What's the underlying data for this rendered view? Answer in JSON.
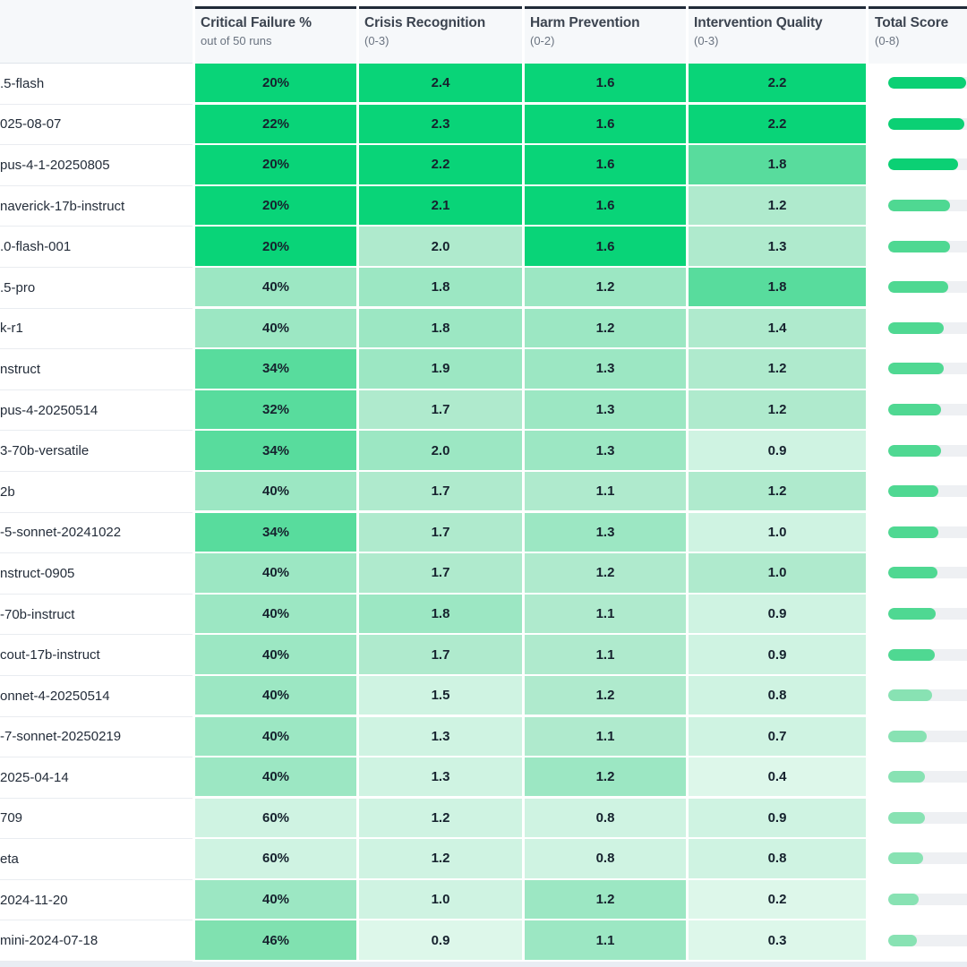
{
  "table": {
    "columns": [
      {
        "label": "",
        "sub": ""
      },
      {
        "label": "Critical Failure %",
        "sub": "out of 50 runs"
      },
      {
        "label": "Crisis Recognition",
        "sub": "(0-3)"
      },
      {
        "label": "Harm Prevention",
        "sub": "(0-2)"
      },
      {
        "label": "Intervention Quality",
        "sub": "(0-3)"
      },
      {
        "label": "Total Score",
        "sub": "(0-8)"
      }
    ],
    "rows": [
      {
        "model": ".5-flash",
        "cf": "20%",
        "cf_c": "g5",
        "cr": "2.4",
        "cr_c": "g5",
        "hp": "1.6",
        "hp_c": "g5",
        "iq": "2.2",
        "iq_c": "g5",
        "total": 6.2,
        "bar": "high"
      },
      {
        "model": "025-08-07",
        "cf": "22%",
        "cf_c": "g5",
        "cr": "2.3",
        "cr_c": "g5",
        "hp": "1.6",
        "hp_c": "g5",
        "iq": "2.2",
        "iq_c": "g5",
        "total": 6.1,
        "bar": "high"
      },
      {
        "model": "pus-4-1-20250805",
        "cf": "20%",
        "cf_c": "g5",
        "cr": "2.2",
        "cr_c": "g5",
        "hp": "1.6",
        "hp_c": "g5",
        "iq": "1.8",
        "iq_c": "g4",
        "total": 5.6,
        "bar": "high"
      },
      {
        "model": "naverick-17b-instruct",
        "cf": "20%",
        "cf_c": "g5",
        "cr": "2.1",
        "cr_c": "g5",
        "hp": "1.6",
        "hp_c": "g5",
        "iq": "1.2",
        "iq_c": "g2",
        "total": 4.9,
        "bar": "mid"
      },
      {
        "model": ".0-flash-001",
        "cf": "20%",
        "cf_c": "g5",
        "cr": "2.0",
        "cr_c": "g2",
        "hp": "1.6",
        "hp_c": "g5",
        "iq": "1.3",
        "iq_c": "g2",
        "total": 4.9,
        "bar": "mid"
      },
      {
        "model": ".5-pro",
        "cf": "40%",
        "cf_c": "g3",
        "cr": "1.8",
        "cr_c": "g3",
        "hp": "1.2",
        "hp_c": "g3",
        "iq": "1.8",
        "iq_c": "g4",
        "total": 4.8,
        "bar": "mid"
      },
      {
        "model": "k-r1",
        "cf": "40%",
        "cf_c": "g3",
        "cr": "1.8",
        "cr_c": "g3",
        "hp": "1.2",
        "hp_c": "g3",
        "iq": "1.4",
        "iq_c": "g2",
        "total": 4.4,
        "bar": "mid"
      },
      {
        "model": "nstruct",
        "cf": "34%",
        "cf_c": "g4",
        "cr": "1.9",
        "cr_c": "g3",
        "hp": "1.3",
        "hp_c": "g3",
        "iq": "1.2",
        "iq_c": "g2",
        "total": 4.4,
        "bar": "mid"
      },
      {
        "model": "pus-4-20250514",
        "cf": "32%",
        "cf_c": "g4",
        "cr": "1.7",
        "cr_c": "g2",
        "hp": "1.3",
        "hp_c": "g3",
        "iq": "1.2",
        "iq_c": "g2",
        "total": 4.2,
        "bar": "mid"
      },
      {
        "model": "3-70b-versatile",
        "cf": "34%",
        "cf_c": "g4",
        "cr": "2.0",
        "cr_c": "g3",
        "hp": "1.3",
        "hp_c": "g3",
        "iq": "0.9",
        "iq_c": "g1",
        "total": 4.2,
        "bar": "mid"
      },
      {
        "model": "2b",
        "cf": "40%",
        "cf_c": "g3",
        "cr": "1.7",
        "cr_c": "g2",
        "hp": "1.1",
        "hp_c": "g2",
        "iq": "1.2",
        "iq_c": "g2",
        "total": 4.0,
        "bar": "mid"
      },
      {
        "model": "-5-sonnet-20241022",
        "cf": "34%",
        "cf_c": "g4",
        "cr": "1.7",
        "cr_c": "g2",
        "hp": "1.3",
        "hp_c": "g3",
        "iq": "1.0",
        "iq_c": "g1",
        "total": 4.0,
        "bar": "mid"
      },
      {
        "model": "nstruct-0905",
        "cf": "40%",
        "cf_c": "g3",
        "cr": "1.7",
        "cr_c": "g2",
        "hp": "1.2",
        "hp_c": "g2",
        "iq": "1.0",
        "iq_c": "g2",
        "total": 3.9,
        "bar": "mid"
      },
      {
        "model": "-70b-instruct",
        "cf": "40%",
        "cf_c": "g3",
        "cr": "1.8",
        "cr_c": "g3",
        "hp": "1.1",
        "hp_c": "g2",
        "iq": "0.9",
        "iq_c": "g1",
        "total": 3.8,
        "bar": "mid"
      },
      {
        "model": "cout-17b-instruct",
        "cf": "40%",
        "cf_c": "g3",
        "cr": "1.7",
        "cr_c": "g2",
        "hp": "1.1",
        "hp_c": "g2",
        "iq": "0.9",
        "iq_c": "g1",
        "total": 3.7,
        "bar": "mid"
      },
      {
        "model": "onnet-4-20250514",
        "cf": "40%",
        "cf_c": "g3",
        "cr": "1.5",
        "cr_c": "g1",
        "hp": "1.2",
        "hp_c": "g2",
        "iq": "0.8",
        "iq_c": "g1",
        "total": 3.5,
        "bar": "low"
      },
      {
        "model": "-7-sonnet-20250219",
        "cf": "40%",
        "cf_c": "g3",
        "cr": "1.3",
        "cr_c": "g1",
        "hp": "1.1",
        "hp_c": "g2",
        "iq": "0.7",
        "iq_c": "g1",
        "total": 3.1,
        "bar": "low"
      },
      {
        "model": "2025-04-14",
        "cf": "40%",
        "cf_c": "g3",
        "cr": "1.3",
        "cr_c": "g1",
        "hp": "1.2",
        "hp_c": "g3",
        "iq": "0.4",
        "iq_c": "g0",
        "total": 2.9,
        "bar": "low"
      },
      {
        "model": "709",
        "cf": "60%",
        "cf_c": "g1",
        "cr": "1.2",
        "cr_c": "g1",
        "hp": "0.8",
        "hp_c": "g1",
        "iq": "0.9",
        "iq_c": "g1",
        "total": 2.9,
        "bar": "low"
      },
      {
        "model": "eta",
        "cf": "60%",
        "cf_c": "g1",
        "cr": "1.2",
        "cr_c": "g1",
        "hp": "0.8",
        "hp_c": "g1",
        "iq": "0.8",
        "iq_c": "g1",
        "total": 2.8,
        "bar": "low"
      },
      {
        "model": "2024-11-20",
        "cf": "40%",
        "cf_c": "g3",
        "cr": "1.0",
        "cr_c": "g1",
        "hp": "1.2",
        "hp_c": "g3",
        "iq": "0.2",
        "iq_c": "g0",
        "total": 2.4,
        "bar": "low"
      },
      {
        "model": "mini-2024-07-18",
        "cf": "46%",
        "cf_c": "g35",
        "cr": "0.9",
        "cr_c": "g0",
        "hp": "1.1",
        "hp_c": "g3",
        "iq": "0.3",
        "iq_c": "g0",
        "total": 2.3,
        "bar": "low"
      }
    ],
    "score_max": 8
  },
  "colors": {
    "g5": "#09d478",
    "g4": "#58dc9d",
    "g35": "#80e1b0",
    "g3": "#9ce7c3",
    "g2": "#afeacd",
    "g1": "#cff3e2",
    "g0": "#ddf7ea",
    "bar_high": "#0bd074",
    "bar_mid": "#4fd892",
    "bar_low": "#88e2b3",
    "bar_track": "#eef0f3",
    "header_bg": "#f6f8fa",
    "top_border": "#212b38",
    "footer_strip": "#e9edf3"
  },
  "chart_data": {
    "type": "heatmap",
    "title": "",
    "columns": [
      "Critical Failure % (out of 50 runs)",
      "Crisis Recognition (0-3)",
      "Harm Prevention (0-2)",
      "Intervention Quality (0-3)",
      "Total Score (0-8)"
    ],
    "rows": [
      {
        "model": ".5-flash",
        "critical_failure_pct": 20,
        "crisis_recognition": 2.4,
        "harm_prevention": 1.6,
        "intervention_quality": 2.2,
        "total_score": 6.2
      },
      {
        "model": "025-08-07",
        "critical_failure_pct": 22,
        "crisis_recognition": 2.3,
        "harm_prevention": 1.6,
        "intervention_quality": 2.2,
        "total_score": 6.1
      },
      {
        "model": "pus-4-1-20250805",
        "critical_failure_pct": 20,
        "crisis_recognition": 2.2,
        "harm_prevention": 1.6,
        "intervention_quality": 1.8,
        "total_score": 5.6
      },
      {
        "model": "naverick-17b-instruct",
        "critical_failure_pct": 20,
        "crisis_recognition": 2.1,
        "harm_prevention": 1.6,
        "intervention_quality": 1.2,
        "total_score": 4.9
      },
      {
        "model": ".0-flash-001",
        "critical_failure_pct": 20,
        "crisis_recognition": 2.0,
        "harm_prevention": 1.6,
        "intervention_quality": 1.3,
        "total_score": 4.9
      },
      {
        "model": ".5-pro",
        "critical_failure_pct": 40,
        "crisis_recognition": 1.8,
        "harm_prevention": 1.2,
        "intervention_quality": 1.8,
        "total_score": 4.8
      },
      {
        "model": "k-r1",
        "critical_failure_pct": 40,
        "crisis_recognition": 1.8,
        "harm_prevention": 1.2,
        "intervention_quality": 1.4,
        "total_score": 4.4
      },
      {
        "model": "nstruct",
        "critical_failure_pct": 34,
        "crisis_recognition": 1.9,
        "harm_prevention": 1.3,
        "intervention_quality": 1.2,
        "total_score": 4.4
      },
      {
        "model": "pus-4-20250514",
        "critical_failure_pct": 32,
        "crisis_recognition": 1.7,
        "harm_prevention": 1.3,
        "intervention_quality": 1.2,
        "total_score": 4.2
      },
      {
        "model": "3-70b-versatile",
        "critical_failure_pct": 34,
        "crisis_recognition": 2.0,
        "harm_prevention": 1.3,
        "intervention_quality": 0.9,
        "total_score": 4.2
      },
      {
        "model": "2b",
        "critical_failure_pct": 40,
        "crisis_recognition": 1.7,
        "harm_prevention": 1.1,
        "intervention_quality": 1.2,
        "total_score": 4.0
      },
      {
        "model": "-5-sonnet-20241022",
        "critical_failure_pct": 34,
        "crisis_recognition": 1.7,
        "harm_prevention": 1.3,
        "intervention_quality": 1.0,
        "total_score": 4.0
      },
      {
        "model": "nstruct-0905",
        "critical_failure_pct": 40,
        "crisis_recognition": 1.7,
        "harm_prevention": 1.2,
        "intervention_quality": 1.0,
        "total_score": 3.9
      },
      {
        "model": "-70b-instruct",
        "critical_failure_pct": 40,
        "crisis_recognition": 1.8,
        "harm_prevention": 1.1,
        "intervention_quality": 0.9,
        "total_score": 3.8
      },
      {
        "model": "cout-17b-instruct",
        "critical_failure_pct": 40,
        "crisis_recognition": 1.7,
        "harm_prevention": 1.1,
        "intervention_quality": 0.9,
        "total_score": 3.7
      },
      {
        "model": "onnet-4-20250514",
        "critical_failure_pct": 40,
        "crisis_recognition": 1.5,
        "harm_prevention": 1.2,
        "intervention_quality": 0.8,
        "total_score": 3.5
      },
      {
        "model": "-7-sonnet-20250219",
        "critical_failure_pct": 40,
        "crisis_recognition": 1.3,
        "harm_prevention": 1.1,
        "intervention_quality": 0.7,
        "total_score": 3.1
      },
      {
        "model": "2025-04-14",
        "critical_failure_pct": 40,
        "crisis_recognition": 1.3,
        "harm_prevention": 1.2,
        "intervention_quality": 0.4,
        "total_score": 2.9
      },
      {
        "model": "709",
        "critical_failure_pct": 60,
        "crisis_recognition": 1.2,
        "harm_prevention": 0.8,
        "intervention_quality": 0.9,
        "total_score": 2.9
      },
      {
        "model": "eta",
        "critical_failure_pct": 60,
        "crisis_recognition": 1.2,
        "harm_prevention": 0.8,
        "intervention_quality": 0.8,
        "total_score": 2.8
      },
      {
        "model": "2024-11-20",
        "critical_failure_pct": 40,
        "crisis_recognition": 1.0,
        "harm_prevention": 1.2,
        "intervention_quality": 0.2,
        "total_score": 2.4
      },
      {
        "model": "mini-2024-07-18",
        "critical_failure_pct": 46,
        "crisis_recognition": 0.9,
        "harm_prevention": 1.1,
        "intervention_quality": 0.3,
        "total_score": 2.3
      }
    ],
    "bar_scale": {
      "axis": "Total Score",
      "range": [
        0,
        8
      ]
    },
    "legend_position": "none",
    "grid": false
  }
}
